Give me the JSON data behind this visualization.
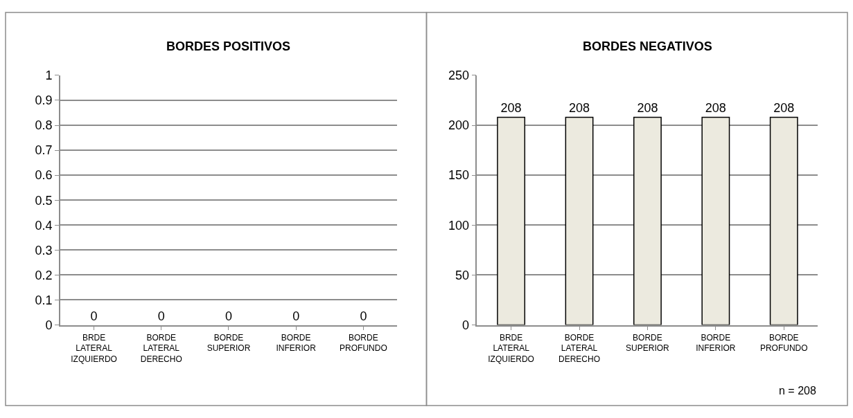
{
  "chart_data": [
    {
      "type": "bar",
      "title": "BORDES POSITIVOS",
      "categories": [
        "BRDE LATERAL IZQUIERDO",
        "BORDE LATERAL DERECHO",
        "BORDE SUPERIOR",
        "BORDE INFERIOR",
        "BORDE PROFUNDO"
      ],
      "values": [
        0,
        0,
        0,
        0,
        0
      ],
      "ylim": [
        0,
        1
      ],
      "yticks": [
        0,
        0.1,
        0.2,
        0.3,
        0.4,
        0.5,
        0.6,
        0.7,
        0.8,
        0.9,
        1
      ],
      "grid": "y",
      "data_labels": true
    },
    {
      "type": "bar",
      "title": "BORDES NEGATIVOS",
      "categories": [
        "BRDE LATERAL IZQUIERDO",
        "BORDE LATERAL DERECHO",
        "BORDE SUPERIOR",
        "BORDE INFERIOR",
        "BORDE PROFUNDO"
      ],
      "values": [
        208,
        208,
        208,
        208,
        208
      ],
      "color": "#eceadf",
      "ylim": [
        0,
        250
      ],
      "yticks": [
        0,
        50,
        100,
        150,
        200,
        250
      ],
      "grid": "y",
      "data_labels": true,
      "annotations": [
        "n = 208"
      ]
    }
  ]
}
